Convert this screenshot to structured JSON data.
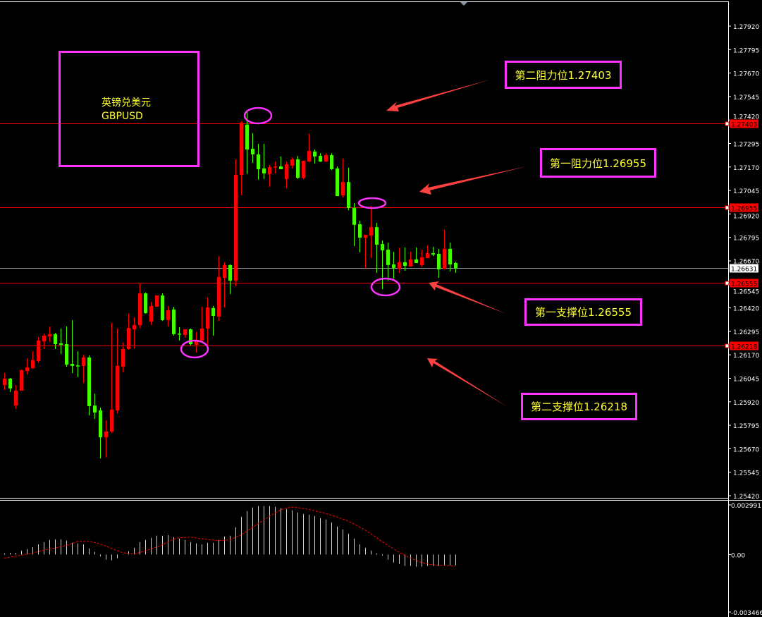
{
  "symbol_box": {
    "name_cn": "英镑兑美元",
    "symbol": "GBPUSD"
  },
  "annotations": {
    "resistance2": "第二阻力位1.27403",
    "resistance1": "第一阻力位1.26955",
    "support1": "第一支撑位1.26555",
    "support2": "第二支撑位1.26218"
  },
  "colors": {
    "background": "#000000",
    "bull": "#ff0000",
    "bear": "#44ff00",
    "level_line": "#ff0000",
    "bid_line": "#8c96a0",
    "annotation_border": "#ff33ff",
    "annotation_text": "#ffff33",
    "arrow": "#ff4040",
    "macd_hist": "#d0d0d0",
    "macd_signal": "#ff0000"
  },
  "chart_data": [
    {
      "type": "candlestick",
      "symbol": "GBPUSD",
      "ylim": [
        1.2542,
        1.2792
      ],
      "y_ticks": [
        "1.27920",
        "1.27795",
        "1.27670",
        "1.27545",
        "1.27420",
        "1.27295",
        "1.27170",
        "1.27045",
        "1.26920",
        "1.26795",
        "1.26670",
        "1.26545",
        "1.26420",
        "1.26295",
        "1.26170",
        "1.26045",
        "1.25920",
        "1.25795",
        "1.25670",
        "1.25545",
        "1.25420"
      ],
      "levels": [
        {
          "price": 1.27403,
          "label": "1.27403"
        },
        {
          "price": 1.26955,
          "label": "1.26955"
        },
        {
          "price": 1.26555,
          "label": "1.26555"
        },
        {
          "price": 1.26218,
          "label": "1.26218"
        }
      ],
      "bid": {
        "price": 1.26631,
        "label": "1.26631"
      },
      "candles_ohlc": [
        [
          1.26009,
          1.26073,
          1.25983,
          1.26043
        ],
        [
          1.26043,
          1.26047,
          1.25972,
          1.25991
        ],
        [
          1.259,
          1.26009,
          1.25882,
          1.25979
        ],
        [
          1.25979,
          1.26092,
          1.25979,
          1.26088
        ],
        [
          1.26084,
          1.26152,
          1.26066,
          1.26103
        ],
        [
          1.26099,
          1.26189,
          1.26096,
          1.26141
        ],
        [
          1.26137,
          1.26265,
          1.26129,
          1.26246
        ],
        [
          1.26242,
          1.26283,
          1.26201,
          1.26272
        ],
        [
          1.26268,
          1.26321,
          1.26238,
          1.2628
        ],
        [
          1.2628,
          1.26287,
          1.26201,
          1.26227
        ],
        [
          1.26231,
          1.2631,
          1.26174,
          1.26223
        ],
        [
          1.26227,
          1.26321,
          1.26107,
          1.26118
        ],
        [
          1.26122,
          1.26355,
          1.26073,
          1.26111
        ],
        [
          1.26114,
          1.26189,
          1.26051,
          1.26111
        ],
        [
          1.26111,
          1.26171,
          1.26021,
          1.26156
        ],
        [
          1.26156,
          1.26167,
          1.25848,
          1.25897
        ],
        [
          1.259,
          1.25964,
          1.25829,
          1.25863
        ],
        [
          1.25874,
          1.25889,
          1.25619,
          1.25731
        ],
        [
          1.25731,
          1.25822,
          1.25623,
          1.25762
        ],
        [
          1.25762,
          1.2634,
          1.25754,
          1.25878
        ],
        [
          1.25874,
          1.2631,
          1.25859,
          1.26111
        ],
        [
          1.26107,
          1.26235,
          1.26077,
          1.26201
        ],
        [
          1.26201,
          1.26389,
          1.26197,
          1.26313
        ],
        [
          1.26306,
          1.2637,
          1.26204,
          1.26328
        ],
        [
          1.26328,
          1.2655,
          1.26313,
          1.26497
        ],
        [
          1.26497,
          1.26501,
          1.26389,
          1.26392
        ],
        [
          1.26347,
          1.26452,
          1.26328,
          1.2643
        ],
        [
          1.26426,
          1.26486,
          1.26426,
          1.26486
        ],
        [
          1.26486,
          1.26497,
          1.26351,
          1.26355
        ],
        [
          1.26355,
          1.2643,
          1.26321,
          1.26407
        ],
        [
          1.26411,
          1.26426,
          1.26272,
          1.2628
        ],
        [
          1.26283,
          1.26317,
          1.26246,
          1.2628
        ],
        [
          1.26276,
          1.26306,
          1.26261,
          1.26306
        ],
        [
          1.26306,
          1.2631,
          1.2622,
          1.26227
        ],
        [
          1.26223,
          1.26291,
          1.26182,
          1.2625
        ],
        [
          1.26246,
          1.26426,
          1.26246,
          1.2631
        ],
        [
          1.2631,
          1.26475,
          1.2622,
          1.26422
        ],
        [
          1.26419,
          1.2643,
          1.26272,
          1.26377
        ],
        [
          1.26374,
          1.26696,
          1.26351,
          1.26584
        ],
        [
          1.2658,
          1.26663,
          1.26422,
          1.26648
        ],
        [
          1.26648,
          1.26651,
          1.26494,
          1.26565
        ],
        [
          1.26565,
          1.27211,
          1.26535,
          1.27128
        ],
        [
          1.27128,
          1.27413,
          1.27019,
          1.27406
        ],
        [
          1.27395,
          1.27466,
          1.27132,
          1.27263
        ],
        [
          1.27267,
          1.2735,
          1.27192,
          1.27237
        ],
        [
          1.27237,
          1.27293,
          1.27102,
          1.27158
        ],
        [
          1.27162,
          1.27293,
          1.27106,
          1.27136
        ],
        [
          1.27132,
          1.27181,
          1.27064,
          1.27169
        ],
        [
          1.27169,
          1.27199,
          1.27136,
          1.27173
        ],
        [
          1.27173,
          1.27226,
          1.27158,
          1.27158
        ],
        [
          1.27106,
          1.27199,
          1.27057,
          1.27184
        ],
        [
          1.27177,
          1.27222,
          1.27162,
          1.27211
        ],
        [
          1.27211,
          1.27229,
          1.27106,
          1.27113
        ],
        [
          1.27113,
          1.27203,
          1.27106,
          1.27203
        ],
        [
          1.27199,
          1.27346,
          1.27196,
          1.27256
        ],
        [
          1.27252,
          1.27263,
          1.27188,
          1.27226
        ],
        [
          1.27229,
          1.27244,
          1.27196,
          1.27199
        ],
        [
          1.27199,
          1.27244,
          1.27196,
          1.27233
        ],
        [
          1.27233,
          1.27244,
          1.27154,
          1.27158
        ],
        [
          1.27162,
          1.27173,
          1.27015,
          1.27015
        ],
        [
          1.27019,
          1.27214,
          1.27008,
          1.2709
        ],
        [
          1.2709,
          1.27166,
          1.2694,
          1.26952
        ],
        [
          1.26952,
          1.26978,
          1.26749,
          1.26862
        ],
        [
          1.26865,
          1.26884,
          1.26715,
          1.26794
        ],
        [
          1.26794,
          1.26809,
          1.26629,
          1.26809
        ],
        [
          1.26805,
          1.26963,
          1.26685,
          1.2685
        ],
        [
          1.2685,
          1.26873,
          1.26606,
          1.26756
        ],
        [
          1.2676,
          1.26779,
          1.2652,
          1.26726
        ],
        [
          1.2673,
          1.26768,
          1.26565,
          1.26648
        ],
        [
          1.26651,
          1.26719,
          1.26576,
          1.26633
        ],
        [
          1.26629,
          1.26741,
          1.26606,
          1.26663
        ],
        [
          1.26663,
          1.26741,
          1.26617,
          1.26644
        ],
        [
          1.2664,
          1.26719,
          1.2664,
          1.26678
        ],
        [
          1.26678,
          1.26741,
          1.26659,
          1.26659
        ],
        [
          1.26648,
          1.2673,
          1.2664,
          1.26689
        ],
        [
          1.26685,
          1.26753,
          1.26685,
          1.26711
        ],
        [
          1.26711,
          1.26745,
          1.26696,
          1.26704
        ],
        [
          1.26708,
          1.26734,
          1.2658,
          1.26625
        ],
        [
          1.26629,
          1.26835,
          1.26625,
          1.26734
        ],
        [
          1.26734,
          1.26768,
          1.26614,
          1.26651
        ],
        [
          1.26659,
          1.26666,
          1.26606,
          1.26631
        ]
      ]
    },
    {
      "type": "bar",
      "indicator": "MACD",
      "ylim": [
        -0.003466,
        0.002991
      ],
      "y_ticks": [
        "0.002991",
        "0.00",
        "-0.003466"
      ],
      "histogram": [
        7e-05,
        0.00011,
        0.00011,
        0.00024,
        0.00033,
        0.00045,
        0.00062,
        0.00075,
        0.00088,
        0.00092,
        0.00092,
        0.00084,
        0.00071,
        0.00067,
        0.00062,
        0.00037,
        0.00016,
        -0.0001,
        -0.00031,
        -0.00035,
        -0.00022,
        -2e-05,
        0.0002,
        0.00041,
        0.00075,
        0.00088,
        0.001,
        0.00113,
        0.00113,
        0.00117,
        0.00105,
        0.00096,
        0.00088,
        0.00075,
        0.00067,
        0.00062,
        0.00071,
        0.00071,
        0.00088,
        0.00109,
        0.00113,
        0.00164,
        0.00228,
        0.00262,
        0.00283,
        0.00292,
        0.00292,
        0.00292,
        0.00288,
        0.00279,
        0.00274,
        0.00266,
        0.00253,
        0.00245,
        0.0024,
        0.00232,
        0.00219,
        0.00211,
        0.00194,
        0.00168,
        0.00151,
        0.00126,
        0.00096,
        0.00062,
        0.00041,
        0.00024,
        7e-05,
        -6e-05,
        -0.00031,
        -0.00048,
        -0.00056,
        -0.00069,
        -0.00069,
        -0.00073,
        -0.00073,
        -0.00069,
        -0.00069,
        -0.00069,
        -0.00065,
        -0.00065,
        -0.00065
      ],
      "signal": [
        -0.00022,
        -0.00016,
        -0.0001,
        -4e-05,
        2e-05,
        9e-05,
        0.00018,
        0.00026,
        0.00033,
        0.00039,
        0.00047,
        0.00055,
        0.00065,
        0.00079,
        0.00079,
        0.00079,
        0.00073,
        0.00063,
        0.00051,
        0.00036,
        0.00024,
        0.00012,
        7e-05,
        3e-05,
        0.00012,
        0.00022,
        0.00034,
        0.00046,
        0.00058,
        0.00075,
        0.00092,
        0.00101,
        0.00103,
        0.00105,
        0.001,
        0.00095,
        0.0009,
        0.00087,
        0.00084,
        0.00086,
        0.00088,
        0.00104,
        0.00119,
        0.0014,
        0.00162,
        0.00185,
        0.00207,
        0.00229,
        0.00249,
        0.00269,
        0.0028,
        0.00285,
        0.00283,
        0.00278,
        0.00272,
        0.00264,
        0.00256,
        0.00247,
        0.00237,
        0.00227,
        0.00214,
        0.002,
        0.00185,
        0.00166,
        0.00148,
        0.00125,
        0.00102,
        0.00078,
        0.00056,
        0.00034,
        0.00014,
        -4e-05,
        -0.00021,
        -0.00035,
        -0.00049,
        -0.00056,
        -0.00061,
        -0.00065,
        -0.00066,
        -0.00068,
        -0.00069
      ]
    }
  ]
}
